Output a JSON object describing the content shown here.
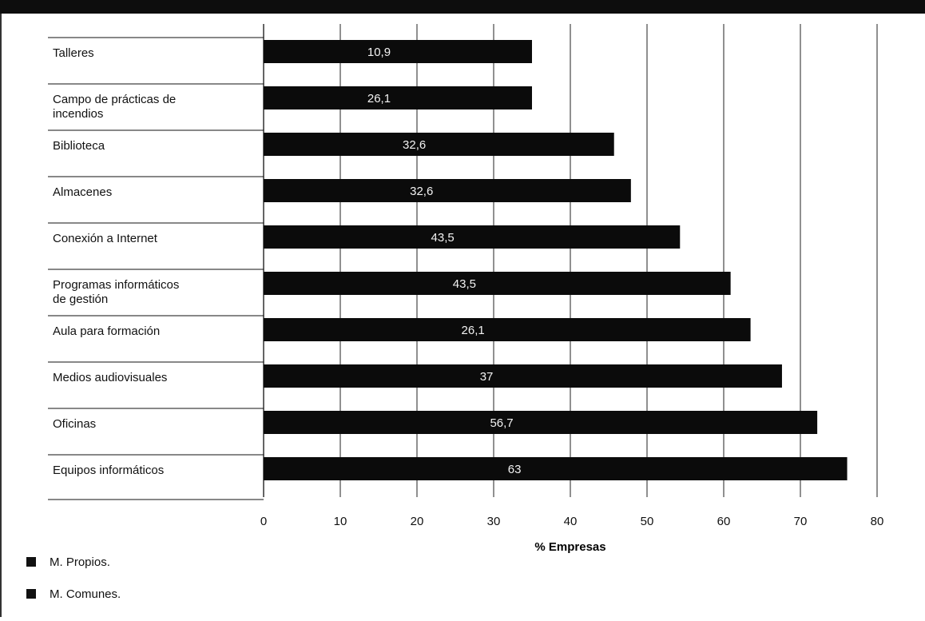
{
  "colors": {
    "frame": "#111111",
    "bar": "#0b0b0b",
    "bar_label": "#f2f2f2",
    "grid": "#222222",
    "text": "#111111"
  },
  "chart_data": {
    "type": "bar",
    "orientation": "horizontal",
    "title": "",
    "xlabel": "% Empresas",
    "ylabel": "",
    "xlim": [
      0,
      80
    ],
    "xticks": [
      0,
      10,
      20,
      30,
      40,
      50,
      60,
      70,
      80
    ],
    "grid": true,
    "legend_position": "bottom-left",
    "categories": [
      "Talleres",
      "Campo de prácticas de incendios",
      "Biblioteca",
      "Almacenes",
      "Conexión a Internet",
      "Programas informáticos de gestión",
      "Aula para formación",
      "Medios audiovisuales",
      "Oficinas",
      "Equipos informáticos"
    ],
    "values": [
      35,
      35,
      45.7,
      47.9,
      54.3,
      60.9,
      63.5,
      67.6,
      72.2,
      76.1
    ],
    "bar_labels": [
      "10,9",
      "26,1",
      "32,6",
      "32,6",
      "43,5",
      "43,5",
      "26,1",
      "37",
      "56,7",
      "63"
    ],
    "legend": [
      {
        "label": "M. Propios.",
        "color": "#111111"
      },
      {
        "label": "M. Comunes.",
        "color": "#111111"
      }
    ]
  }
}
